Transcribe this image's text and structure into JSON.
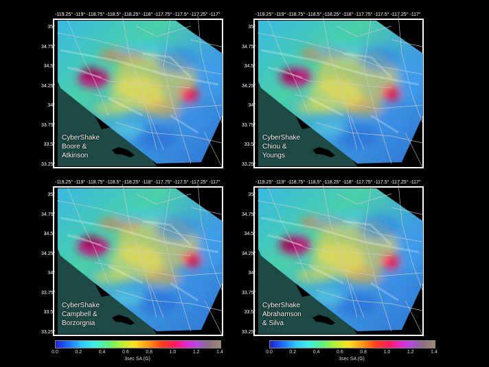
{
  "lon_labels": "-119.25° -119° -118.75° -118.5° -118.25° -118° -117.75° -117.5° -117.25° -117°",
  "lat_labels": [
    "35°",
    "34.75°",
    "34.5°",
    "34.25°",
    "34°",
    "33.75°",
    "33.5°",
    "33.25°"
  ],
  "panels": [
    {
      "caption": [
        "CyberShake",
        "Boore &",
        "Atkinson"
      ]
    },
    {
      "caption": [
        "CyberShake",
        "Chiou &",
        "Youngs"
      ]
    },
    {
      "caption": [
        "CyberShake",
        "Campbell &",
        "Borzorgnia"
      ]
    },
    {
      "caption": [
        "CyberShake",
        "Abrahamson",
        "& Silva"
      ]
    }
  ],
  "colorbar": {
    "ticks": [
      "0.0",
      "0.2",
      "0.4",
      "0.6",
      "0.8",
      "1.0",
      "1.2",
      "1.4"
    ],
    "title": "3sec SA (G)"
  },
  "colors": {
    "background": "#000000",
    "ocean": "#1d4a45",
    "roads": "#cfcfcf"
  }
}
